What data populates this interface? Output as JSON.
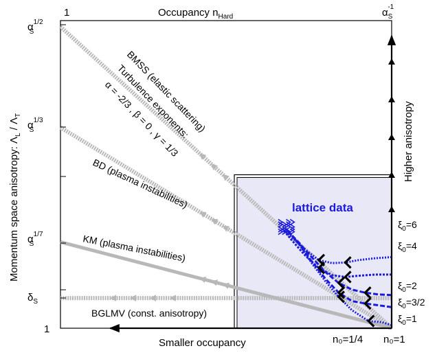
{
  "chart_data": {
    "type": "line",
    "title": "",
    "xlabel": "Smaller occupancy",
    "x2label": {
      "main": "Occupancy n",
      "sub": "Hard"
    },
    "ylabel": "Momentum space anisotropy: Λ",
    "ylabel_parts": {
      "a": "Momentum space anisotropy: Λ",
      "a_sub": "L",
      "sep": " / Λ",
      "b_sub": "T"
    },
    "y2label": "Higher anisotropy",
    "corner_labels": {
      "top_left": "1",
      "top_right": {
        "base": "α",
        "sub": "S",
        "sup": "-1"
      },
      "bottom_left": "1"
    },
    "ytick_labels": [
      {
        "base": "α",
        "sub": "S",
        "sup": "1/2",
        "y": 0.5
      },
      {
        "base": "α",
        "sub": "S",
        "sup": "1/3",
        "y": 0.333
      },
      {
        "base": "α",
        "sub": "S",
        "sup": "1/7",
        "y": 0.143
      },
      {
        "base": "δ",
        "sub": "S",
        "sup": "",
        "y": 0.05
      }
    ],
    "xtick_labels": [
      {
        "text": "n₀=1/4",
        "x": 0.75
      },
      {
        "text": "n₀=1",
        "x": 1.0
      }
    ],
    "xi_labels": [
      {
        "main": "ξ",
        "sub": "0",
        "tail": "=6"
      },
      {
        "main": "ξ",
        "sub": "0",
        "tail": "=4"
      },
      {
        "main": "ξ",
        "sub": "0",
        "tail": "=2"
      },
      {
        "main": "ξ",
        "sub": "0",
        "tail": "=3/2"
      },
      {
        "main": "ξ",
        "sub": "0",
        "tail": "=1"
      }
    ],
    "annotations": {
      "bmss": "BMSS (elastic scattering)",
      "turb1": "Turbulence exponents:",
      "turb2": "α = -2/3 , β = 0 , γ = 1/3",
      "bd": "BD (plasma instabilities)",
      "km": "KM (plasma instabilities)",
      "bglmv": "BGLMV (const. anisotropy)",
      "lattice": "lattice data"
    },
    "series": [
      {
        "name": "BMSS (elastic scattering)",
        "x": [
          0.0,
          1.0
        ],
        "y": [
          0.5,
          0.0
        ]
      },
      {
        "name": "BD (plasma instabilities)",
        "x": [
          0.0,
          1.0
        ],
        "y": [
          0.333,
          0.0
        ]
      },
      {
        "name": "KM (plasma instabilities)",
        "x": [
          0.0,
          1.0
        ],
        "y": [
          0.143,
          0.0
        ]
      },
      {
        "name": "BGLMV (const. anisotropy)",
        "x": [
          0.0,
          1.0
        ],
        "y": [
          0.05,
          0.05
        ]
      }
    ],
    "lattice_box": {
      "x": [
        0.5,
        1.0
      ],
      "y": [
        0.0,
        0.25
      ]
    },
    "lattice_curves": [
      {
        "xi0": "6",
        "x": [
          1.0,
          0.95,
          0.9,
          0.86,
          0.82,
          0.78,
          0.74,
          0.7,
          0.67
        ],
        "y": [
          0.118,
          0.116,
          0.113,
          0.109,
          0.108,
          0.113,
          0.13,
          0.15,
          0.165
        ]
      },
      {
        "xi0": "4",
        "x": [
          1.0,
          0.95,
          0.9,
          0.86,
          0.82,
          0.78,
          0.74,
          0.7,
          0.67
        ],
        "y": [
          0.089,
          0.089,
          0.087,
          0.085,
          0.088,
          0.1,
          0.12,
          0.145,
          0.165
        ]
      },
      {
        "xi0": "2",
        "x": [
          1.0,
          0.96,
          0.92,
          0.88,
          0.84,
          0.8,
          0.76,
          0.72,
          0.68
        ],
        "y": [
          0.055,
          0.056,
          0.059,
          0.064,
          0.075,
          0.093,
          0.117,
          0.142,
          0.165
        ]
      },
      {
        "xi0": "3/2",
        "x": [
          1.0,
          0.96,
          0.92,
          0.88,
          0.84,
          0.8,
          0.76,
          0.72,
          0.68
        ],
        "y": [
          0.035,
          0.038,
          0.041,
          0.045,
          0.059,
          0.082,
          0.11,
          0.14,
          0.165
        ]
      },
      {
        "xi0": "1",
        "x": [
          1.0,
          0.97,
          0.93,
          0.88,
          0.84,
          0.8,
          0.76,
          0.72,
          0.68
        ],
        "y": [
          0.005,
          0.01,
          0.012,
          0.03,
          0.052,
          0.078,
          0.107,
          0.14,
          0.165
        ]
      }
    ],
    "arrow_colors": {
      "theory": "#b8b8b8",
      "lattice": "#1a1adc",
      "axis": "#000000"
    }
  }
}
